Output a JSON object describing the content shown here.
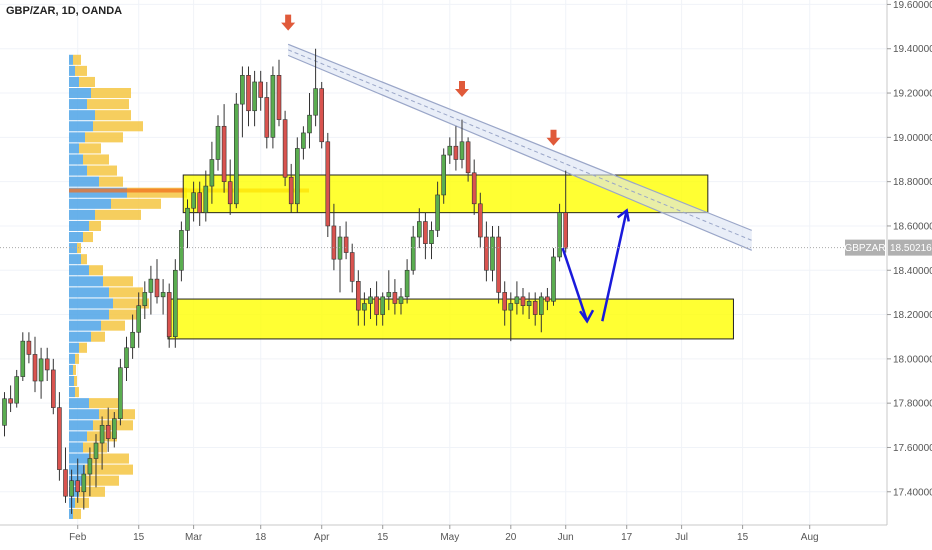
{
  "chart_data": {
    "type": "candlestick",
    "title": "GBP/ZAR, 1D, OANDA",
    "symbol": "GBPZAR",
    "last_price": "18.50216",
    "colors": {
      "up": "#5aad50",
      "down": "#d9534f",
      "zone": "#ffff00",
      "zone_border": "#222222",
      "arrow_red": "#e05a3a",
      "arrow_blue": "#1a1adb",
      "channel": "#9aa6c8",
      "vp_blue": "#4da3e6",
      "vp_yellow": "#f5c542",
      "poc": "#f07020"
    },
    "ylim": [
      17.25,
      19.62
    ],
    "y_ticks": [
      {
        "v": 19.6,
        "label": "19.60000"
      },
      {
        "v": 19.4,
        "label": "19.40000"
      },
      {
        "v": 19.2,
        "label": "19.20000"
      },
      {
        "v": 19.0,
        "label": "19.00000"
      },
      {
        "v": 18.8,
        "label": "18.80000"
      },
      {
        "v": 18.6,
        "label": "18.60000"
      },
      {
        "v": 18.4,
        "label": "18.40000"
      },
      {
        "v": 18.2,
        "label": "18.20000"
      },
      {
        "v": 18.0,
        "label": "18.00000"
      },
      {
        "v": 17.8,
        "label": "17.80000"
      },
      {
        "v": 17.6,
        "label": "17.60000"
      },
      {
        "v": 17.4,
        "label": "17.40000"
      }
    ],
    "x_ticks": [
      {
        "i": 12,
        "label": "Feb"
      },
      {
        "i": 22,
        "label": "15"
      },
      {
        "i": 31,
        "label": "Mar"
      },
      {
        "i": 42,
        "label": "18"
      },
      {
        "i": 52,
        "label": "Apr"
      },
      {
        "i": 62,
        "label": "15"
      },
      {
        "i": 73,
        "label": "May"
      },
      {
        "i": 83,
        "label": "20"
      },
      {
        "i": 92,
        "label": "Jun"
      },
      {
        "i": 102,
        "label": "17"
      },
      {
        "i": 111,
        "label": "Jul"
      },
      {
        "i": 121,
        "label": "15"
      },
      {
        "i": 132,
        "label": "Aug"
      }
    ],
    "ohlc": [
      [
        17.7,
        17.85,
        17.65,
        17.82
      ],
      [
        17.82,
        17.88,
        17.76,
        17.8
      ],
      [
        17.8,
        17.95,
        17.78,
        17.92
      ],
      [
        17.92,
        18.12,
        17.9,
        18.08
      ],
      [
        18.08,
        18.12,
        17.98,
        18.02
      ],
      [
        18.02,
        18.1,
        17.85,
        17.9
      ],
      [
        17.9,
        18.05,
        17.82,
        18.0
      ],
      [
        18.0,
        18.05,
        17.9,
        17.95
      ],
      [
        17.95,
        18.0,
        17.75,
        17.78
      ],
      [
        17.78,
        17.85,
        17.45,
        17.5
      ],
      [
        17.5,
        17.6,
        17.35,
        17.38
      ],
      [
        17.38,
        17.5,
        17.3,
        17.45
      ],
      [
        17.45,
        17.55,
        17.35,
        17.4
      ],
      [
        17.4,
        17.52,
        17.32,
        17.48
      ],
      [
        17.48,
        17.6,
        17.38,
        17.55
      ],
      [
        17.55,
        17.66,
        17.42,
        17.62
      ],
      [
        17.62,
        17.74,
        17.5,
        17.7
      ],
      [
        17.7,
        17.78,
        17.58,
        17.64
      ],
      [
        17.64,
        17.76,
        17.6,
        17.73
      ],
      [
        17.73,
        18.0,
        17.7,
        17.96
      ],
      [
        17.96,
        18.1,
        17.9,
        18.05
      ],
      [
        18.05,
        18.2,
        18.0,
        18.12
      ],
      [
        18.12,
        18.3,
        18.05,
        18.24
      ],
      [
        18.24,
        18.35,
        18.18,
        18.3
      ],
      [
        18.3,
        18.42,
        18.2,
        18.36
      ],
      [
        18.36,
        18.45,
        18.25,
        18.28
      ],
      [
        18.28,
        18.36,
        18.2,
        18.3
      ],
      [
        18.3,
        18.34,
        18.05,
        18.1
      ],
      [
        18.1,
        18.45,
        18.05,
        18.4
      ],
      [
        18.4,
        18.62,
        18.35,
        18.58
      ],
      [
        18.58,
        18.72,
        18.5,
        18.68
      ],
      [
        18.68,
        18.8,
        18.62,
        18.75
      ],
      [
        18.75,
        18.8,
        18.6,
        18.66
      ],
      [
        18.66,
        18.85,
        18.62,
        18.78
      ],
      [
        18.78,
        18.98,
        18.7,
        18.9
      ],
      [
        18.9,
        19.1,
        18.85,
        19.05
      ],
      [
        19.05,
        19.15,
        18.75,
        18.8
      ],
      [
        18.8,
        18.9,
        18.65,
        18.7
      ],
      [
        18.7,
        19.2,
        18.68,
        19.15
      ],
      [
        19.15,
        19.32,
        19.0,
        19.28
      ],
      [
        19.28,
        19.32,
        19.05,
        19.12
      ],
      [
        19.12,
        19.3,
        19.05,
        19.25
      ],
      [
        19.25,
        19.3,
        19.12,
        19.18
      ],
      [
        19.18,
        19.25,
        18.95,
        19.0
      ],
      [
        19.0,
        19.32,
        18.95,
        19.28
      ],
      [
        19.28,
        19.35,
        19.05,
        19.08
      ],
      [
        19.08,
        19.12,
        18.78,
        18.82
      ],
      [
        18.82,
        18.88,
        18.66,
        18.7
      ],
      [
        18.7,
        19.0,
        18.66,
        18.95
      ],
      [
        18.95,
        19.05,
        18.9,
        19.02
      ],
      [
        19.02,
        19.2,
        18.95,
        19.1
      ],
      [
        19.1,
        19.4,
        19.05,
        19.22
      ],
      [
        19.22,
        19.25,
        18.95,
        18.98
      ],
      [
        18.98,
        19.02,
        18.55,
        18.6
      ],
      [
        18.6,
        18.7,
        18.4,
        18.45
      ],
      [
        18.45,
        18.6,
        18.3,
        18.55
      ],
      [
        18.55,
        18.62,
        18.45,
        18.48
      ],
      [
        18.48,
        18.52,
        18.3,
        18.35
      ],
      [
        18.35,
        18.4,
        18.15,
        18.22
      ],
      [
        18.22,
        18.3,
        18.15,
        18.25
      ],
      [
        18.25,
        18.32,
        18.18,
        18.28
      ],
      [
        18.28,
        18.35,
        18.15,
        18.2
      ],
      [
        18.2,
        18.3,
        18.15,
        18.28
      ],
      [
        18.28,
        18.4,
        18.22,
        18.3
      ],
      [
        18.3,
        18.36,
        18.2,
        18.25
      ],
      [
        18.25,
        18.32,
        18.2,
        18.28
      ],
      [
        18.28,
        18.45,
        18.25,
        18.4
      ],
      [
        18.4,
        18.6,
        18.38,
        18.55
      ],
      [
        18.55,
        18.68,
        18.5,
        18.62
      ],
      [
        18.62,
        18.66,
        18.45,
        18.52
      ],
      [
        18.52,
        18.62,
        18.45,
        18.58
      ],
      [
        18.58,
        18.8,
        18.55,
        18.74
      ],
      [
        18.74,
        18.95,
        18.7,
        18.92
      ],
      [
        18.92,
        19.0,
        18.88,
        18.96
      ],
      [
        18.96,
        19.05,
        18.85,
        18.9
      ],
      [
        18.9,
        19.08,
        18.86,
        18.98
      ],
      [
        18.98,
        19.0,
        18.8,
        18.84
      ],
      [
        18.84,
        18.9,
        18.65,
        18.7
      ],
      [
        18.7,
        18.75,
        18.5,
        18.55
      ],
      [
        18.55,
        18.62,
        18.35,
        18.4
      ],
      [
        18.4,
        18.6,
        18.35,
        18.55
      ],
      [
        18.55,
        18.6,
        18.25,
        18.3
      ],
      [
        18.3,
        18.35,
        18.15,
        18.22
      ],
      [
        18.22,
        18.3,
        18.08,
        18.25
      ],
      [
        18.25,
        18.35,
        18.2,
        18.28
      ],
      [
        18.28,
        18.32,
        18.2,
        18.24
      ],
      [
        18.24,
        18.3,
        18.18,
        18.26
      ],
      [
        18.26,
        18.3,
        18.15,
        18.2
      ],
      [
        18.2,
        18.3,
        18.12,
        18.28
      ],
      [
        18.28,
        18.32,
        18.22,
        18.26
      ],
      [
        18.26,
        18.5,
        18.24,
        18.46
      ],
      [
        18.46,
        18.7,
        18.44,
        18.66
      ],
      [
        18.66,
        18.85,
        18.48,
        18.5
      ]
    ],
    "zones": [
      {
        "i0": 29.3,
        "i1": 115.3,
        "top": 18.83,
        "bottom": 18.66
      },
      {
        "i0": 26.8,
        "i1": 119.5,
        "top": 18.27,
        "bottom": 18.09
      }
    ],
    "channel": [
      {
        "i0": 46.5,
        "v0": 19.42,
        "i1": 122.5,
        "v1": 18.58
      },
      {
        "i0": 46.5,
        "v0": 19.37,
        "i1": 122.5,
        "v1": 18.49
      }
    ],
    "red_arrows": [
      {
        "i": 46.5,
        "v": 19.5
      },
      {
        "i": 75,
        "v": 19.2
      },
      {
        "i": 90,
        "v": 18.98
      }
    ],
    "blue_path": [
      {
        "i": 91.5,
        "v": 18.5
      },
      {
        "i": 95.5,
        "v": 18.17
      },
      {
        "i": 98,
        "v": 18.17
      },
      {
        "i": 102,
        "v": 18.67
      }
    ],
    "volume_profile": {
      "buckets": [
        {
          "v": 19.35,
          "blue": 4,
          "yellow": 8
        },
        {
          "v": 19.3,
          "blue": 6,
          "yellow": 12
        },
        {
          "v": 19.25,
          "blue": 10,
          "yellow": 16
        },
        {
          "v": 19.2,
          "blue": 22,
          "yellow": 40
        },
        {
          "v": 19.15,
          "blue": 18,
          "yellow": 42
        },
        {
          "v": 19.1,
          "blue": 26,
          "yellow": 36
        },
        {
          "v": 19.05,
          "blue": 24,
          "yellow": 50
        },
        {
          "v": 19.0,
          "blue": 16,
          "yellow": 38
        },
        {
          "v": 18.95,
          "blue": 10,
          "yellow": 22
        },
        {
          "v": 18.9,
          "blue": 14,
          "yellow": 26
        },
        {
          "v": 18.85,
          "blue": 18,
          "yellow": 30
        },
        {
          "v": 18.8,
          "blue": 30,
          "yellow": 24
        },
        {
          "v": 18.75,
          "blue": 58,
          "yellow": 60
        },
        {
          "v": 18.7,
          "blue": 42,
          "yellow": 50
        },
        {
          "v": 18.65,
          "blue": 26,
          "yellow": 46
        },
        {
          "v": 18.6,
          "blue": 20,
          "yellow": 12
        },
        {
          "v": 18.55,
          "blue": 14,
          "yellow": 10
        },
        {
          "v": 18.5,
          "blue": 8,
          "yellow": 4
        },
        {
          "v": 18.45,
          "blue": 12,
          "yellow": 6
        },
        {
          "v": 18.4,
          "blue": 20,
          "yellow": 14
        },
        {
          "v": 18.35,
          "blue": 34,
          "yellow": 30
        },
        {
          "v": 18.3,
          "blue": 40,
          "yellow": 34
        },
        {
          "v": 18.25,
          "blue": 44,
          "yellow": 36
        },
        {
          "v": 18.2,
          "blue": 40,
          "yellow": 28
        },
        {
          "v": 18.15,
          "blue": 32,
          "yellow": 24
        },
        {
          "v": 18.1,
          "blue": 22,
          "yellow": 14
        },
        {
          "v": 18.05,
          "blue": 10,
          "yellow": 8
        },
        {
          "v": 18.0,
          "blue": 6,
          "yellow": 4
        },
        {
          "v": 17.95,
          "blue": 4,
          "yellow": 3
        },
        {
          "v": 17.9,
          "blue": 5,
          "yellow": 3
        },
        {
          "v": 17.85,
          "blue": 6,
          "yellow": 4
        },
        {
          "v": 17.8,
          "blue": 20,
          "yellow": 30
        },
        {
          "v": 17.75,
          "blue": 30,
          "yellow": 36
        },
        {
          "v": 17.7,
          "blue": 24,
          "yellow": 40
        },
        {
          "v": 17.65,
          "blue": 18,
          "yellow": 30
        },
        {
          "v": 17.6,
          "blue": 14,
          "yellow": 24
        },
        {
          "v": 17.55,
          "blue": 20,
          "yellow": 40
        },
        {
          "v": 17.5,
          "blue": 16,
          "yellow": 48
        },
        {
          "v": 17.45,
          "blue": 14,
          "yellow": 36
        },
        {
          "v": 17.4,
          "blue": 10,
          "yellow": 26
        },
        {
          "v": 17.35,
          "blue": 6,
          "yellow": 14
        },
        {
          "v": 17.3,
          "blue": 4,
          "yellow": 8
        }
      ],
      "poc": 18.76
    }
  }
}
